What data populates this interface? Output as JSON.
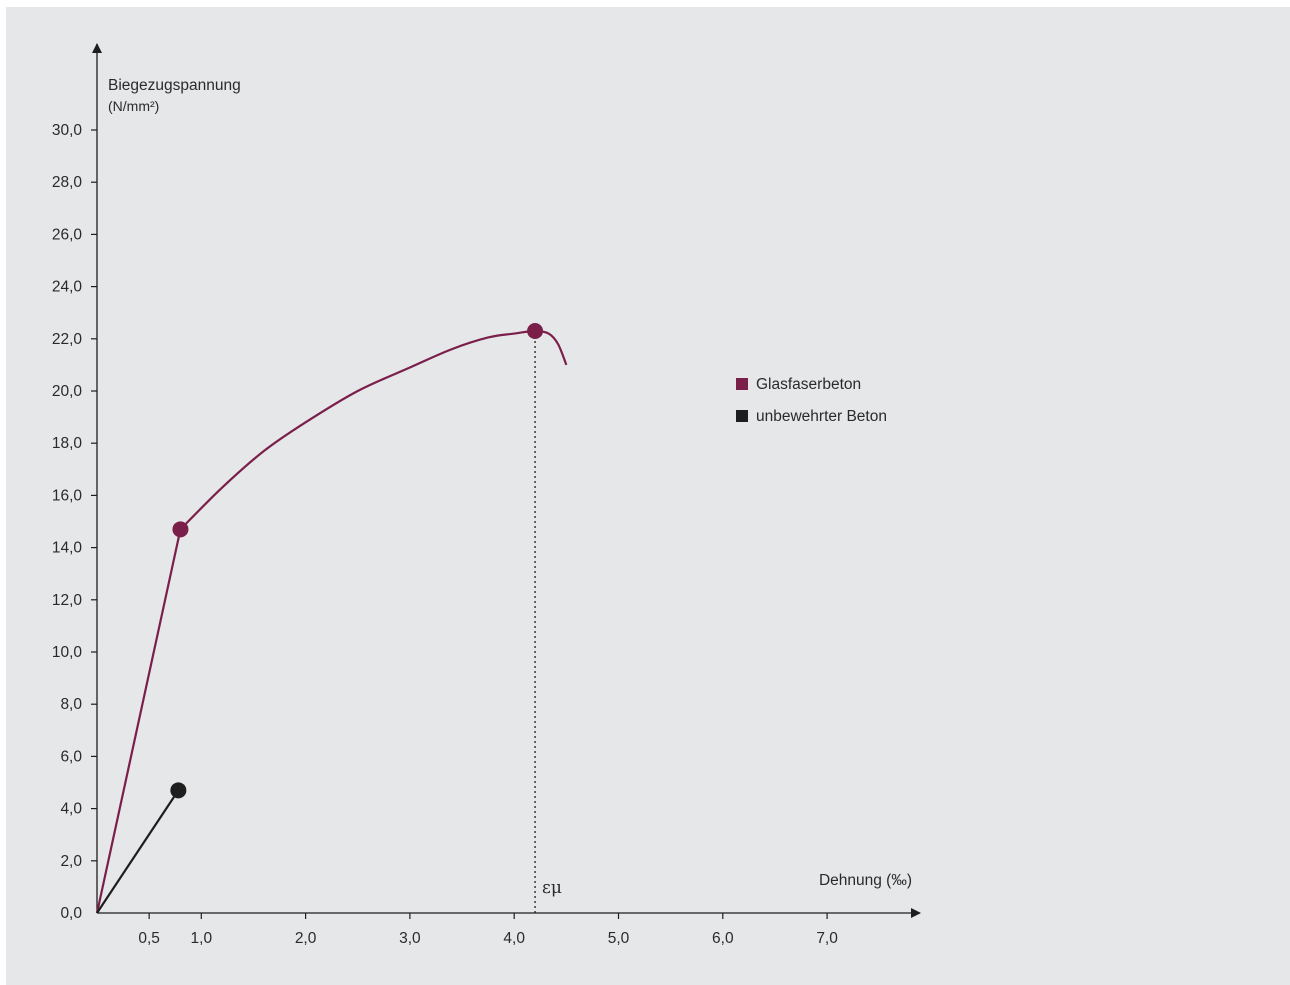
{
  "chart_data": {
    "type": "line",
    "ylabel_line1": "Biegezugspannung",
    "ylabel_line2": "(N/mm²)",
    "xlabel": "Dehnung (‰)",
    "yticks": [
      "0,0",
      "2,0",
      "4,0",
      "6,0",
      "8,0",
      "10,0",
      "12,0",
      "14,0",
      "16,0",
      "18,0",
      "20,0",
      "22,0",
      "24,0",
      "26,0",
      "28,0",
      "30,0"
    ],
    "ytick_values": [
      0,
      2,
      4,
      6,
      8,
      10,
      12,
      14,
      16,
      18,
      20,
      22,
      24,
      26,
      28,
      30
    ],
    "xticks": [
      "0,5",
      "1,0",
      "2,0",
      "3,0",
      "4,0",
      "5,0",
      "6,0",
      "7,0"
    ],
    "xtick_values": [
      0.5,
      1,
      2,
      3,
      4,
      5,
      6,
      7
    ],
    "xlim": [
      0,
      7.9
    ],
    "ylim": [
      0,
      31.5
    ],
    "annotation": "εμ",
    "annotation_x": 4.2,
    "series": [
      {
        "name": "Glasfaserbeton",
        "color": "#7a1f4a",
        "points": [
          [
            0,
            0
          ],
          [
            0.8,
            14.7
          ],
          [
            1.2,
            16.3
          ],
          [
            1.6,
            17.7
          ],
          [
            2.0,
            18.8
          ],
          [
            2.5,
            20.0
          ],
          [
            3.0,
            20.9
          ],
          [
            3.4,
            21.6
          ],
          [
            3.75,
            22.05
          ],
          [
            4.0,
            22.2
          ],
          [
            4.2,
            22.3
          ],
          [
            4.33,
            22.2
          ],
          [
            4.42,
            21.8
          ],
          [
            4.5,
            21.0
          ]
        ],
        "markers": [
          [
            0.8,
            14.7
          ],
          [
            4.2,
            22.3
          ]
        ]
      },
      {
        "name": "unbewehrter Beton",
        "color": "#1e1e1e",
        "points": [
          [
            0,
            0
          ],
          [
            0.78,
            4.7
          ]
        ],
        "markers": [
          [
            0.78,
            4.7
          ]
        ]
      }
    ]
  }
}
